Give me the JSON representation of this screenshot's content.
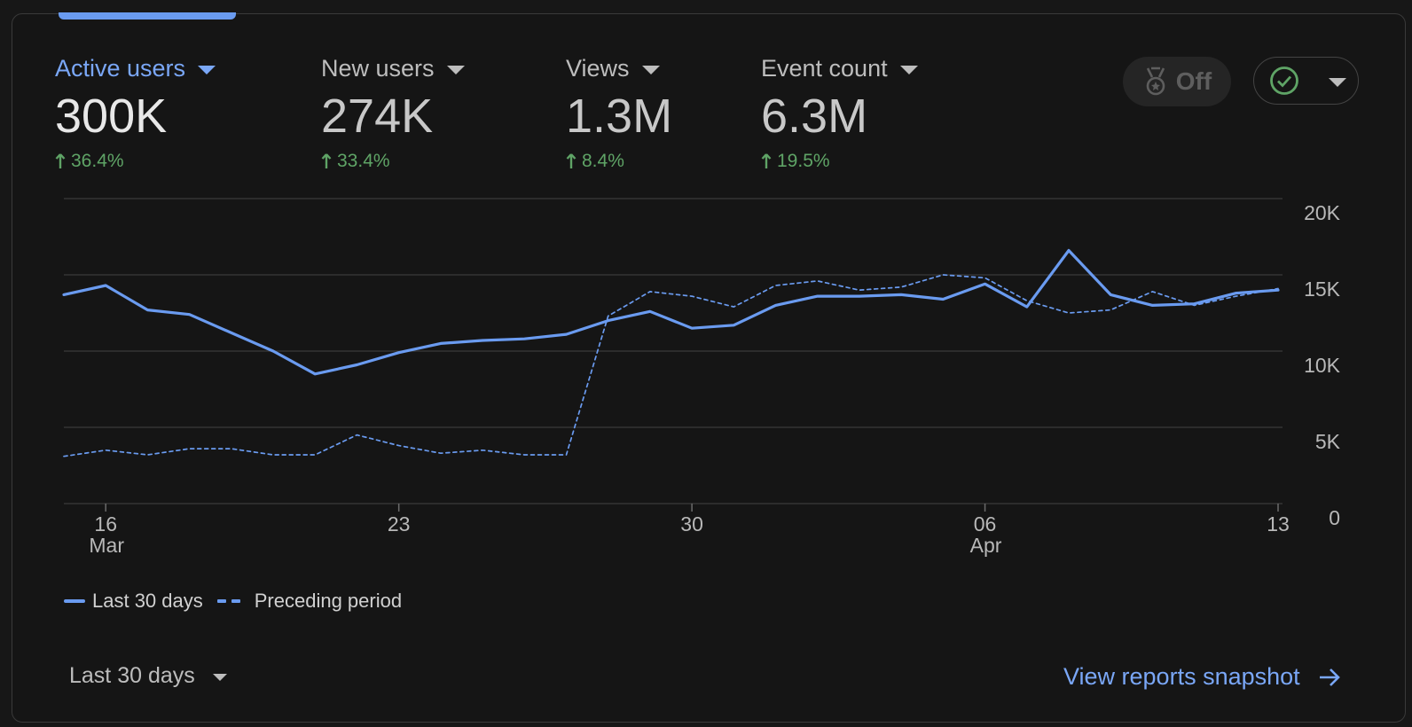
{
  "metrics": [
    {
      "label": "Active users",
      "value": "300K",
      "change": "36.4%",
      "active": true
    },
    {
      "label": "New users",
      "value": "274K",
      "change": "33.4%",
      "active": false
    },
    {
      "label": "Views",
      "value": "1.3M",
      "change": "8.4%",
      "active": false
    },
    {
      "label": "Event count",
      "value": "6.3M",
      "change": "19.5%",
      "active": false
    }
  ],
  "toggles": {
    "insights_label": "Off",
    "insights_icon": "badge-icon",
    "status_icon": "check-circle-icon"
  },
  "colors": {
    "accent": "#6a9bf0",
    "positive": "#5fa466",
    "background": "#151515"
  },
  "legend": {
    "current": "Last 30 days",
    "previous": "Preceding period"
  },
  "footer": {
    "date_range": "Last 30 days",
    "link": "View reports snapshot"
  },
  "chart_data": {
    "type": "line",
    "x_tick_labels": [
      {
        "day": "16",
        "month": "Mar"
      },
      {
        "day": "23",
        "month": ""
      },
      {
        "day": "30",
        "month": ""
      },
      {
        "day": "06",
        "month": "Apr"
      },
      {
        "day": "13",
        "month": ""
      }
    ],
    "y_tick_labels": [
      "0",
      "5K",
      "10K",
      "15K",
      "20K"
    ],
    "ylim": [
      0,
      20000
    ],
    "grid": true,
    "y_axis_side": "right",
    "legend_position": "bottom-left",
    "series": [
      {
        "name": "Last 30 days",
        "style": "solid",
        "values": [
          13700,
          14300,
          12700,
          12400,
          11200,
          10000,
          8500,
          9100,
          9900,
          10500,
          10700,
          10800,
          11100,
          12000,
          12600,
          11500,
          11700,
          13000,
          13600,
          13600,
          13700,
          13400,
          14400,
          12900,
          16600,
          13700,
          13000,
          13100,
          13800,
          14000
        ]
      },
      {
        "name": "Preceding period",
        "style": "dashed",
        "values": [
          3100,
          3500,
          3200,
          3600,
          3600,
          3200,
          3200,
          4500,
          3800,
          3300,
          3500,
          3200,
          3200,
          12300,
          13900,
          13600,
          12900,
          14300,
          14600,
          14000,
          14200,
          15000,
          14800,
          13300,
          12500,
          12700,
          13900,
          13000,
          13600,
          14100
        ]
      }
    ]
  }
}
